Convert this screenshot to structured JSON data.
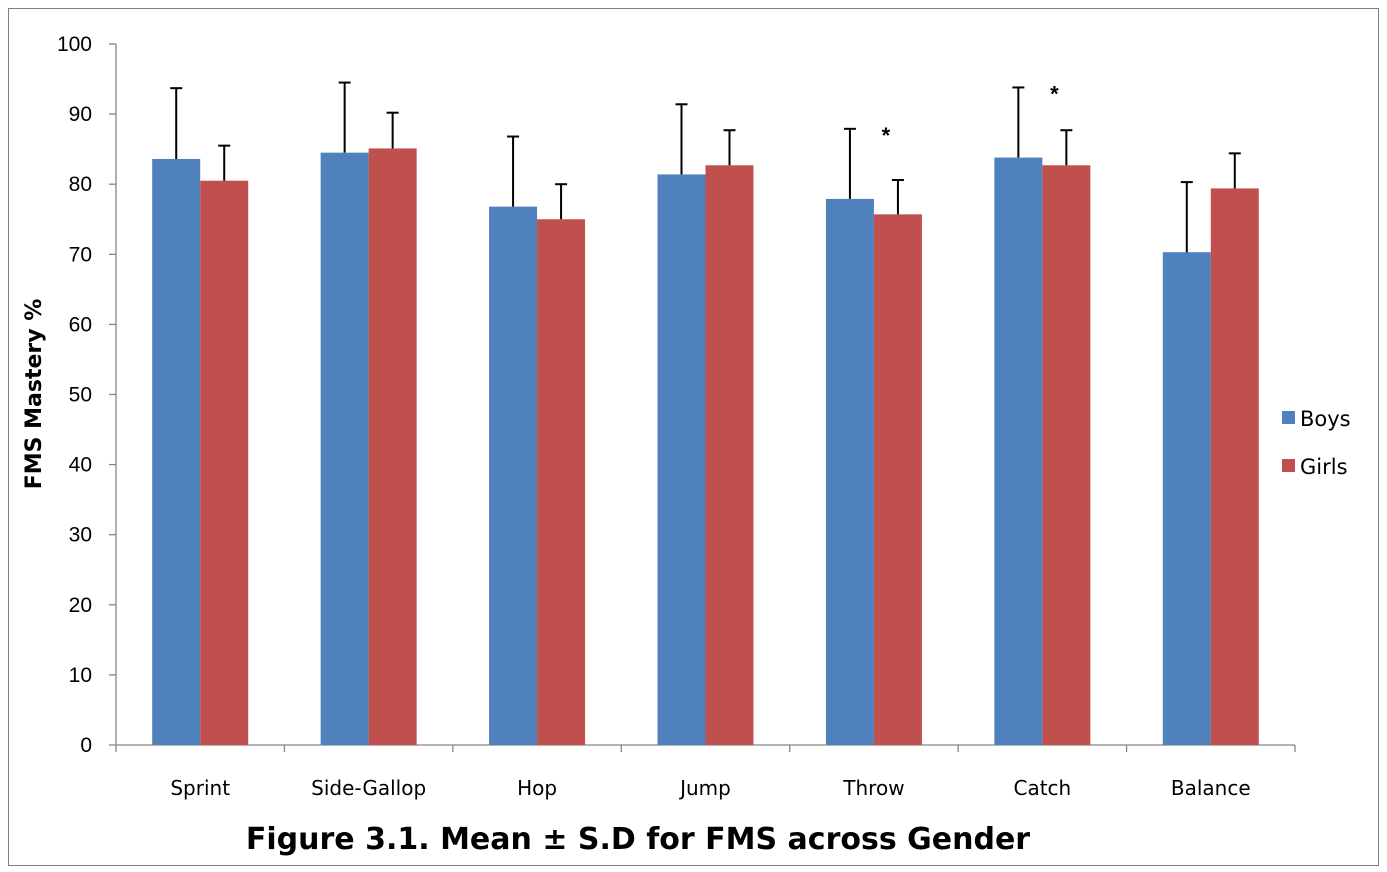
{
  "chart_data": {
    "type": "bar",
    "title": "Figure 3.1. Mean ± S.D for FMS across Gender",
    "ylabel": "FMS Mastery %",
    "xlabel": "",
    "ylim": [
      0,
      100
    ],
    "yticks": [
      "0",
      "10",
      "20",
      "30",
      "40",
      "50",
      "60",
      "70",
      "80",
      "90",
      "100"
    ],
    "categories": [
      "Sprint",
      "Side-Gallop",
      "Hop",
      "Jump",
      "Throw",
      "Catch",
      "Balance"
    ],
    "series": [
      {
        "name": "Boys",
        "color": "#4f81bd",
        "values": [
          83.6,
          84.5,
          76.8,
          81.4,
          77.9,
          83.8,
          70.3
        ],
        "sd": [
          10.1,
          10.0,
          10.0,
          10.0,
          10.0,
          10.0,
          10.0
        ]
      },
      {
        "name": "Girls",
        "color": "#c0504d",
        "values": [
          80.5,
          85.1,
          75.0,
          82.7,
          75.7,
          82.7,
          79.4
        ],
        "sd": [
          5.0,
          5.1,
          5.0,
          5.0,
          4.9,
          5.0,
          5.0
        ]
      }
    ],
    "annotations": [
      {
        "text": "*",
        "category": "Throw"
      },
      {
        "text": "*",
        "category": "Catch"
      }
    ],
    "legend": "right",
    "grid": false
  }
}
